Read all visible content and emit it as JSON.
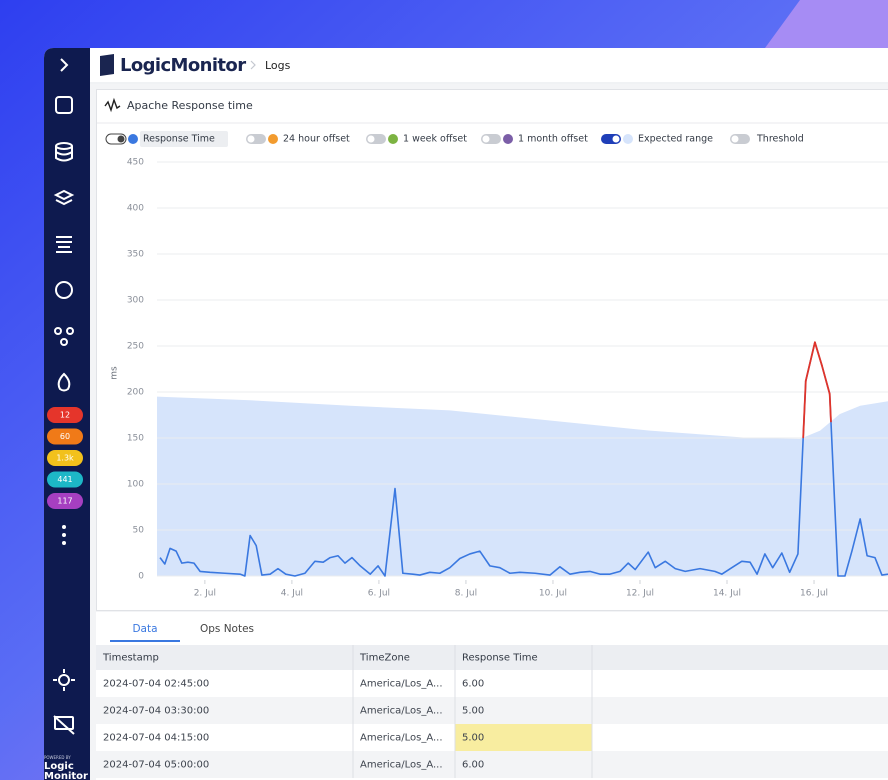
{
  "header": {
    "brand": "LogicMonitor",
    "breadcrumb": "Logs"
  },
  "sidebar": {
    "badges": [
      {
        "label": "12",
        "color": "#e5352b"
      },
      {
        "label": "60",
        "color": "#f07a18"
      },
      {
        "label": "1.3k",
        "color": "#f2c11c"
      },
      {
        "label": "441",
        "color": "#1db7c7"
      },
      {
        "label": "117",
        "color": "#a63fc1"
      }
    ],
    "powered_by": "POWERED BY",
    "brand_lines": [
      "Logic",
      "Monitor"
    ]
  },
  "chart_data": {
    "type": "line",
    "title": "Apache Response time",
    "y_label": "ms",
    "ylim": [
      0,
      450
    ],
    "yticks": [
      0,
      50,
      100,
      150,
      200,
      250,
      300,
      350,
      400,
      450
    ],
    "xlim": [
      0.9,
      17.7
    ],
    "xticks": [
      {
        "value": 2,
        "label": "2. Jul"
      },
      {
        "value": 4,
        "label": "4. Jul"
      },
      {
        "value": 6,
        "label": "6. Jul"
      },
      {
        "value": 8,
        "label": "8. Jul"
      },
      {
        "value": 10,
        "label": "10. Jul"
      },
      {
        "value": 12,
        "label": "12. Jul"
      },
      {
        "value": 14,
        "label": "14. Jul"
      },
      {
        "value": 16,
        "label": "16. Jul"
      }
    ],
    "grid": true,
    "series": [
      {
        "name": "Response Time",
        "color": "#3a78e0",
        "on": true,
        "kind": "line",
        "above_range_color": "#e0342a",
        "x": [
          0.97,
          1.08,
          1.2,
          1.34,
          1.47,
          1.61,
          1.75,
          1.89,
          2.12,
          2.46,
          2.81,
          2.92,
          3.04,
          3.18,
          3.31,
          3.5,
          3.68,
          3.86,
          4.07,
          4.3,
          4.53,
          4.72,
          4.88,
          5.06,
          5.22,
          5.38,
          5.57,
          5.8,
          5.98,
          6.14,
          6.37,
          6.55,
          6.78,
          6.94,
          7.17,
          7.4,
          7.63,
          7.86,
          8.09,
          8.32,
          8.55,
          8.78,
          9.01,
          9.24,
          9.59,
          9.93,
          10.16,
          10.39,
          10.62,
          10.85,
          11.08,
          11.31,
          11.54,
          11.73,
          11.89,
          12.19,
          12.35,
          12.58,
          12.81,
          13.04,
          13.38,
          13.72,
          13.88,
          14.11,
          14.34,
          14.53,
          14.69,
          14.87,
          15.05,
          15.26,
          15.44,
          15.63,
          15.81,
          16.02,
          16.18,
          16.36,
          16.55,
          16.71,
          16.87,
          17.06,
          17.22,
          17.4,
          17.56,
          17.7
        ],
        "values": [
          20,
          13,
          30,
          27,
          14,
          15,
          14,
          5,
          4,
          3,
          2,
          0,
          44,
          33,
          1,
          2,
          8,
          2,
          0,
          3,
          16,
          15,
          20,
          22,
          14,
          20,
          11,
          2,
          11,
          0,
          95,
          3,
          2,
          1,
          4,
          3,
          9,
          19,
          24,
          27,
          11,
          9,
          3,
          4,
          3,
          1,
          10,
          2,
          4,
          5,
          2,
          2,
          5,
          14,
          7,
          26,
          9,
          16,
          8,
          5,
          8,
          5,
          2,
          9,
          16,
          15,
          2,
          24,
          9,
          25,
          4,
          24,
          212,
          254,
          229,
          198,
          0,
          0,
          27,
          62,
          22,
          20,
          1,
          2
        ]
      },
      {
        "name": "24 hour offset",
        "color": "#f29b2e",
        "on": false
      },
      {
        "name": "1 week offset",
        "color": "#7cb342",
        "on": false
      },
      {
        "name": "1 month offset",
        "color": "#7b5ea7",
        "on": false
      },
      {
        "name": "Expected range",
        "color": "#d6e4fb",
        "on": true,
        "kind": "area",
        "x": [
          0.9,
          3.04,
          5.34,
          7.63,
          9.93,
          12.23,
          14.53,
          15.68,
          16.14,
          16.59,
          17.06,
          17.7
        ],
        "values": [
          195,
          191,
          185,
          180,
          169,
          158,
          150,
          149,
          158,
          176,
          185,
          190
        ]
      },
      {
        "name": "Threshold",
        "on": false
      }
    ]
  },
  "tabs": {
    "items": [
      "Data",
      "Ops Notes"
    ],
    "active": 0
  },
  "table": {
    "columns": [
      "Timestamp",
      "TimeZone",
      "Response Time"
    ],
    "rows": [
      [
        "2024-07-04 02:45:00",
        "America/Los_A...",
        "6.00"
      ],
      [
        "2024-07-04 03:30:00",
        "America/Los_A...",
        "5.00"
      ],
      [
        "2024-07-04 04:15:00",
        "America/Los_A...",
        "5.00"
      ],
      [
        "2024-07-04 05:00:00",
        "America/Los_A...",
        "6.00"
      ]
    ],
    "highlight": {
      "row": 2,
      "column": 2
    }
  }
}
